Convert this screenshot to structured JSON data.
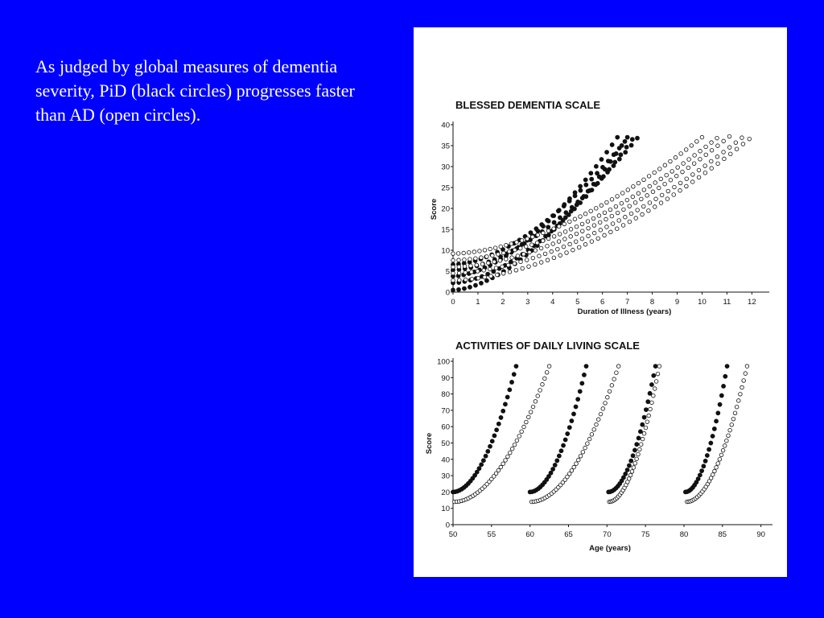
{
  "caption": "As judged by global measures of dementia severity, PiD (black circles) progresses faster than AD (open circles).",
  "colors": {
    "background": "#0000FF",
    "caption_text": "#FFFFFF",
    "panel": "#FFFFFF",
    "ink": "#111111"
  },
  "chart_data": [
    {
      "type": "scatter",
      "title": "BLESSED DEMENTIA SCALE",
      "xlabel": "Duration of Illness (years)",
      "ylabel": "Score",
      "xlim": [
        0,
        12.7
      ],
      "ylim": [
        0,
        40
      ],
      "xticks": [
        0,
        1,
        2,
        3,
        4,
        5,
        6,
        7,
        8,
        9,
        10,
        11,
        12
      ],
      "yticks": [
        0,
        5,
        10,
        15,
        20,
        25,
        30,
        35,
        40
      ],
      "grid": false,
      "series": [
        {
          "marker": "filled",
          "x0": 0,
          "y0": 0.5,
          "x1": 7.0,
          "y1": 37,
          "points": 32
        },
        {
          "marker": "filled",
          "x0": 0,
          "y0": 2.2,
          "x1": 7.2,
          "y1": 36.5,
          "points": 32
        },
        {
          "marker": "filled",
          "x0": 0,
          "y0": 3.8,
          "x1": 6.6,
          "y1": 37,
          "points": 32
        },
        {
          "marker": "filled",
          "x0": 0,
          "y0": 5.3,
          "x1": 7.4,
          "y1": 36.8,
          "points": 32
        },
        {
          "marker": "filled",
          "x0": 0,
          "y0": 6.6,
          "x1": 6.9,
          "y1": 36,
          "points": 32
        },
        {
          "marker": "open",
          "x0": 0,
          "y0": 9.2,
          "x1": 10.0,
          "y1": 37,
          "points": 48
        },
        {
          "marker": "open",
          "x0": 0,
          "y0": 7.6,
          "x1": 10.6,
          "y1": 36.8,
          "points": 48
        },
        {
          "marker": "open",
          "x0": 0,
          "y0": 6.0,
          "x1": 11.1,
          "y1": 37.2,
          "points": 48
        },
        {
          "marker": "open",
          "x0": 0,
          "y0": 4.5,
          "x1": 11.6,
          "y1": 36.9,
          "points": 48
        },
        {
          "marker": "open",
          "x0": 0,
          "y0": 2.8,
          "x1": 11.9,
          "y1": 36.6,
          "points": 48
        }
      ]
    },
    {
      "type": "scatter",
      "title": "ACTIVITIES OF DAILY LIVING SCALE",
      "xlabel": "Age (years)",
      "ylabel": "Score",
      "xlim": [
        50,
        91.5
      ],
      "ylim": [
        0,
        100
      ],
      "xticks": [
        50,
        55,
        60,
        65,
        70,
        75,
        80,
        85,
        90
      ],
      "yticks": [
        0,
        10,
        20,
        30,
        40,
        50,
        60,
        70,
        80,
        90,
        100
      ],
      "grid": false,
      "series": [
        {
          "marker": "filled",
          "x0": 50,
          "y0": 20,
          "x1": 58.2,
          "y1": 97,
          "points": 30
        },
        {
          "marker": "open",
          "x0": 50.2,
          "y0": 14,
          "x1": 62.5,
          "y1": 97,
          "points": 42
        },
        {
          "marker": "filled",
          "x0": 60,
          "y0": 20,
          "x1": 67.3,
          "y1": 97,
          "points": 28
        },
        {
          "marker": "open",
          "x0": 60.2,
          "y0": 14,
          "x1": 71.5,
          "y1": 97,
          "points": 40
        },
        {
          "marker": "filled",
          "x0": 70.2,
          "y0": 20,
          "x1": 76.3,
          "y1": 97,
          "points": 26
        },
        {
          "marker": "open",
          "x0": 70.3,
          "y0": 14,
          "x1": 76.8,
          "y1": 97,
          "points": 34
        },
        {
          "marker": "filled",
          "x0": 80.2,
          "y0": 20,
          "x1": 85.6,
          "y1": 97,
          "points": 24
        },
        {
          "marker": "open",
          "x0": 80.4,
          "y0": 14,
          "x1": 88.2,
          "y1": 97,
          "points": 36
        }
      ]
    }
  ]
}
